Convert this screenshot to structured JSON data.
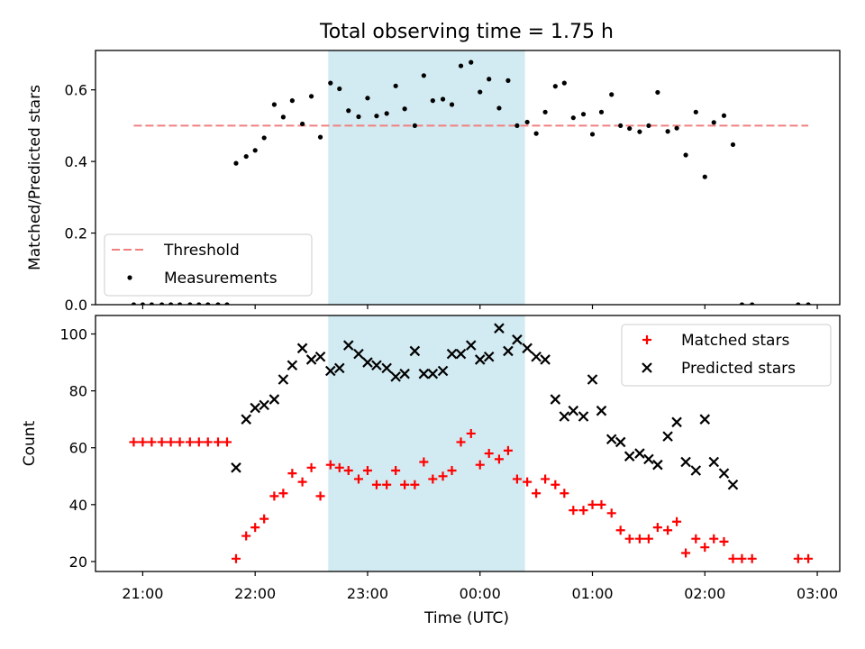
{
  "title": "Total observing time = 1.75 h",
  "xlabel": "Time (UTC)",
  "x_tick_labels": [
    "21:00",
    "22:00",
    "23:00",
    "00:00",
    "01:00",
    "02:00",
    "03:00"
  ],
  "colors": {
    "threshold": "#f08080",
    "measurements": "#000000",
    "matched": "#ff0000",
    "predicted": "#000000",
    "observing_window": "#add8e6"
  },
  "chart_data": [
    {
      "type": "scatter",
      "ylabel": "Matched/Predicted stars",
      "x_axis": "time, hours after 00:00 UTC of the first night (24 = 00:00 next day)",
      "xlim": [
        20.58,
        27.2
      ],
      "ylim": [
        0,
        0.71
      ],
      "y_ticks": [
        0.0,
        0.2,
        0.4,
        0.6
      ],
      "y_tick_labels": [
        "0.0",
        "0.2",
        "0.4",
        "0.6"
      ],
      "observing_window": [
        22.65,
        24.4
      ],
      "legend": {
        "position": "lower left",
        "entries": [
          "Threshold",
          "Measurements"
        ]
      },
      "threshold": {
        "name": "Threshold",
        "value": 0.5,
        "x_range": [
          20.92,
          26.92
        ]
      },
      "series": [
        {
          "name": "Measurements",
          "marker": "dot",
          "points": [
            [
              20.92,
              0
            ],
            [
              21.0,
              0
            ],
            [
              21.08,
              0
            ],
            [
              21.17,
              0
            ],
            [
              21.25,
              0
            ],
            [
              21.33,
              0
            ],
            [
              21.42,
              0
            ],
            [
              21.5,
              0
            ],
            [
              21.58,
              0
            ],
            [
              21.67,
              0
            ],
            [
              21.75,
              0
            ],
            [
              21.83,
              0.395
            ],
            [
              21.92,
              0.414
            ],
            [
              22.0,
              0.431
            ],
            [
              22.08,
              0.466
            ],
            [
              22.17,
              0.559
            ],
            [
              22.25,
              0.524
            ],
            [
              22.33,
              0.57
            ],
            [
              22.42,
              0.505
            ],
            [
              22.5,
              0.582
            ],
            [
              22.58,
              0.468
            ],
            [
              22.67,
              0.619
            ],
            [
              22.75,
              0.603
            ],
            [
              22.83,
              0.542
            ],
            [
              22.92,
              0.525
            ],
            [
              23.0,
              0.577
            ],
            [
              23.08,
              0.527
            ],
            [
              23.17,
              0.534
            ],
            [
              23.25,
              0.611
            ],
            [
              23.33,
              0.547
            ],
            [
              23.42,
              0.5
            ],
            [
              23.5,
              0.64
            ],
            [
              23.58,
              0.57
            ],
            [
              23.67,
              0.574
            ],
            [
              23.75,
              0.559
            ],
            [
              23.83,
              0.667
            ],
            [
              23.92,
              0.677
            ],
            [
              24.0,
              0.594
            ],
            [
              24.08,
              0.63
            ],
            [
              24.17,
              0.549
            ],
            [
              24.25,
              0.626
            ],
            [
              24.33,
              0.5
            ],
            [
              24.42,
              0.51
            ],
            [
              24.5,
              0.478
            ],
            [
              24.58,
              0.538
            ],
            [
              24.67,
              0.61
            ],
            [
              24.75,
              0.619
            ],
            [
              24.83,
              0.522
            ],
            [
              24.92,
              0.532
            ],
            [
              25.0,
              0.476
            ],
            [
              25.08,
              0.538
            ],
            [
              25.17,
              0.587
            ],
            [
              25.25,
              0.5
            ],
            [
              25.33,
              0.492
            ],
            [
              25.42,
              0.483
            ],
            [
              25.5,
              0.5
            ],
            [
              25.58,
              0.593
            ],
            [
              25.67,
              0.484
            ],
            [
              25.75,
              0.493
            ],
            [
              25.83,
              0.418
            ],
            [
              25.92,
              0.538
            ],
            [
              26.0,
              0.357
            ],
            [
              26.08,
              0.509
            ],
            [
              26.17,
              0.528
            ],
            [
              26.25,
              0.447
            ],
            [
              26.33,
              0
            ],
            [
              26.42,
              0
            ],
            [
              26.83,
              0
            ],
            [
              26.92,
              0
            ]
          ]
        }
      ]
    },
    {
      "type": "scatter",
      "ylabel": "Count",
      "x_axis": "time, hours after 00:00 UTC of the first night (24 = 00:00 next day)",
      "xlim": [
        20.58,
        27.2
      ],
      "ylim": [
        16.5,
        106.5
      ],
      "y_ticks": [
        20,
        40,
        60,
        80,
        100
      ],
      "y_tick_labels": [
        "20",
        "40",
        "60",
        "80",
        "100"
      ],
      "observing_window": [
        22.65,
        24.4
      ],
      "legend": {
        "position": "upper right",
        "entries": [
          "Matched stars",
          "Predicted stars"
        ]
      },
      "series": [
        {
          "name": "Matched stars",
          "marker": "plus",
          "points": [
            [
              20.92,
              62
            ],
            [
              21.0,
              62
            ],
            [
              21.08,
              62
            ],
            [
              21.17,
              62
            ],
            [
              21.25,
              62
            ],
            [
              21.33,
              62
            ],
            [
              21.42,
              62
            ],
            [
              21.5,
              62
            ],
            [
              21.58,
              62
            ],
            [
              21.67,
              62
            ],
            [
              21.75,
              62
            ],
            [
              21.83,
              21
            ],
            [
              21.92,
              29
            ],
            [
              22.0,
              32
            ],
            [
              22.08,
              35
            ],
            [
              22.17,
              43
            ],
            [
              22.25,
              44
            ],
            [
              22.33,
              51
            ],
            [
              22.42,
              48
            ],
            [
              22.5,
              53
            ],
            [
              22.58,
              43
            ],
            [
              22.67,
              54
            ],
            [
              22.75,
              53
            ],
            [
              22.83,
              52
            ],
            [
              22.92,
              49
            ],
            [
              23.0,
              52
            ],
            [
              23.08,
              47
            ],
            [
              23.17,
              47
            ],
            [
              23.25,
              52
            ],
            [
              23.33,
              47
            ],
            [
              23.42,
              47
            ],
            [
              23.5,
              55
            ],
            [
              23.58,
              49
            ],
            [
              23.67,
              50
            ],
            [
              23.75,
              52
            ],
            [
              23.83,
              62
            ],
            [
              23.92,
              65
            ],
            [
              24.0,
              54
            ],
            [
              24.08,
              58
            ],
            [
              24.17,
              56
            ],
            [
              24.25,
              59
            ],
            [
              24.33,
              49
            ],
            [
              24.42,
              48
            ],
            [
              24.5,
              44
            ],
            [
              24.58,
              49
            ],
            [
              24.67,
              47
            ],
            [
              24.75,
              44
            ],
            [
              24.83,
              38
            ],
            [
              24.92,
              38
            ],
            [
              25.0,
              40
            ],
            [
              25.08,
              40
            ],
            [
              25.17,
              37
            ],
            [
              25.25,
              31
            ],
            [
              25.33,
              28
            ],
            [
              25.42,
              28
            ],
            [
              25.5,
              28
            ],
            [
              25.58,
              32
            ],
            [
              25.67,
              31
            ],
            [
              25.75,
              34
            ],
            [
              25.83,
              23
            ],
            [
              25.92,
              28
            ],
            [
              26.0,
              25
            ],
            [
              26.08,
              28
            ],
            [
              26.17,
              27
            ],
            [
              26.25,
              21
            ],
            [
              26.33,
              21
            ],
            [
              26.42,
              21
            ],
            [
              26.83,
              21
            ],
            [
              26.92,
              21
            ]
          ]
        },
        {
          "name": "Predicted stars",
          "marker": "x",
          "points": [
            [
              21.83,
              53
            ],
            [
              21.92,
              70
            ],
            [
              22.0,
              74
            ],
            [
              22.08,
              75
            ],
            [
              22.17,
              77
            ],
            [
              22.25,
              84
            ],
            [
              22.33,
              89
            ],
            [
              22.42,
              95
            ],
            [
              22.5,
              91
            ],
            [
              22.58,
              92
            ],
            [
              22.67,
              87
            ],
            [
              22.75,
              88
            ],
            [
              22.83,
              96
            ],
            [
              22.92,
              93
            ],
            [
              23.0,
              90
            ],
            [
              23.08,
              89
            ],
            [
              23.17,
              88
            ],
            [
              23.25,
              85
            ],
            [
              23.33,
              86
            ],
            [
              23.42,
              94
            ],
            [
              23.5,
              86
            ],
            [
              23.58,
              86
            ],
            [
              23.67,
              87
            ],
            [
              23.75,
              93
            ],
            [
              23.83,
              93
            ],
            [
              23.92,
              96
            ],
            [
              24.0,
              91
            ],
            [
              24.08,
              92
            ],
            [
              24.17,
              102
            ],
            [
              24.25,
              94
            ],
            [
              24.33,
              98
            ],
            [
              24.42,
              95
            ],
            [
              24.5,
              92
            ],
            [
              24.58,
              91
            ],
            [
              24.67,
              77
            ],
            [
              24.75,
              71
            ],
            [
              24.83,
              73
            ],
            [
              24.92,
              71
            ],
            [
              25.0,
              84
            ],
            [
              25.08,
              73
            ],
            [
              25.17,
              63
            ],
            [
              25.25,
              62
            ],
            [
              25.33,
              57
            ],
            [
              25.42,
              58
            ],
            [
              25.5,
              56
            ],
            [
              25.58,
              54
            ],
            [
              25.67,
              64
            ],
            [
              25.75,
              69
            ],
            [
              25.83,
              55
            ],
            [
              25.92,
              52
            ],
            [
              26.0,
              70
            ],
            [
              26.08,
              55
            ],
            [
              26.17,
              51
            ],
            [
              26.25,
              47
            ]
          ]
        }
      ]
    }
  ]
}
